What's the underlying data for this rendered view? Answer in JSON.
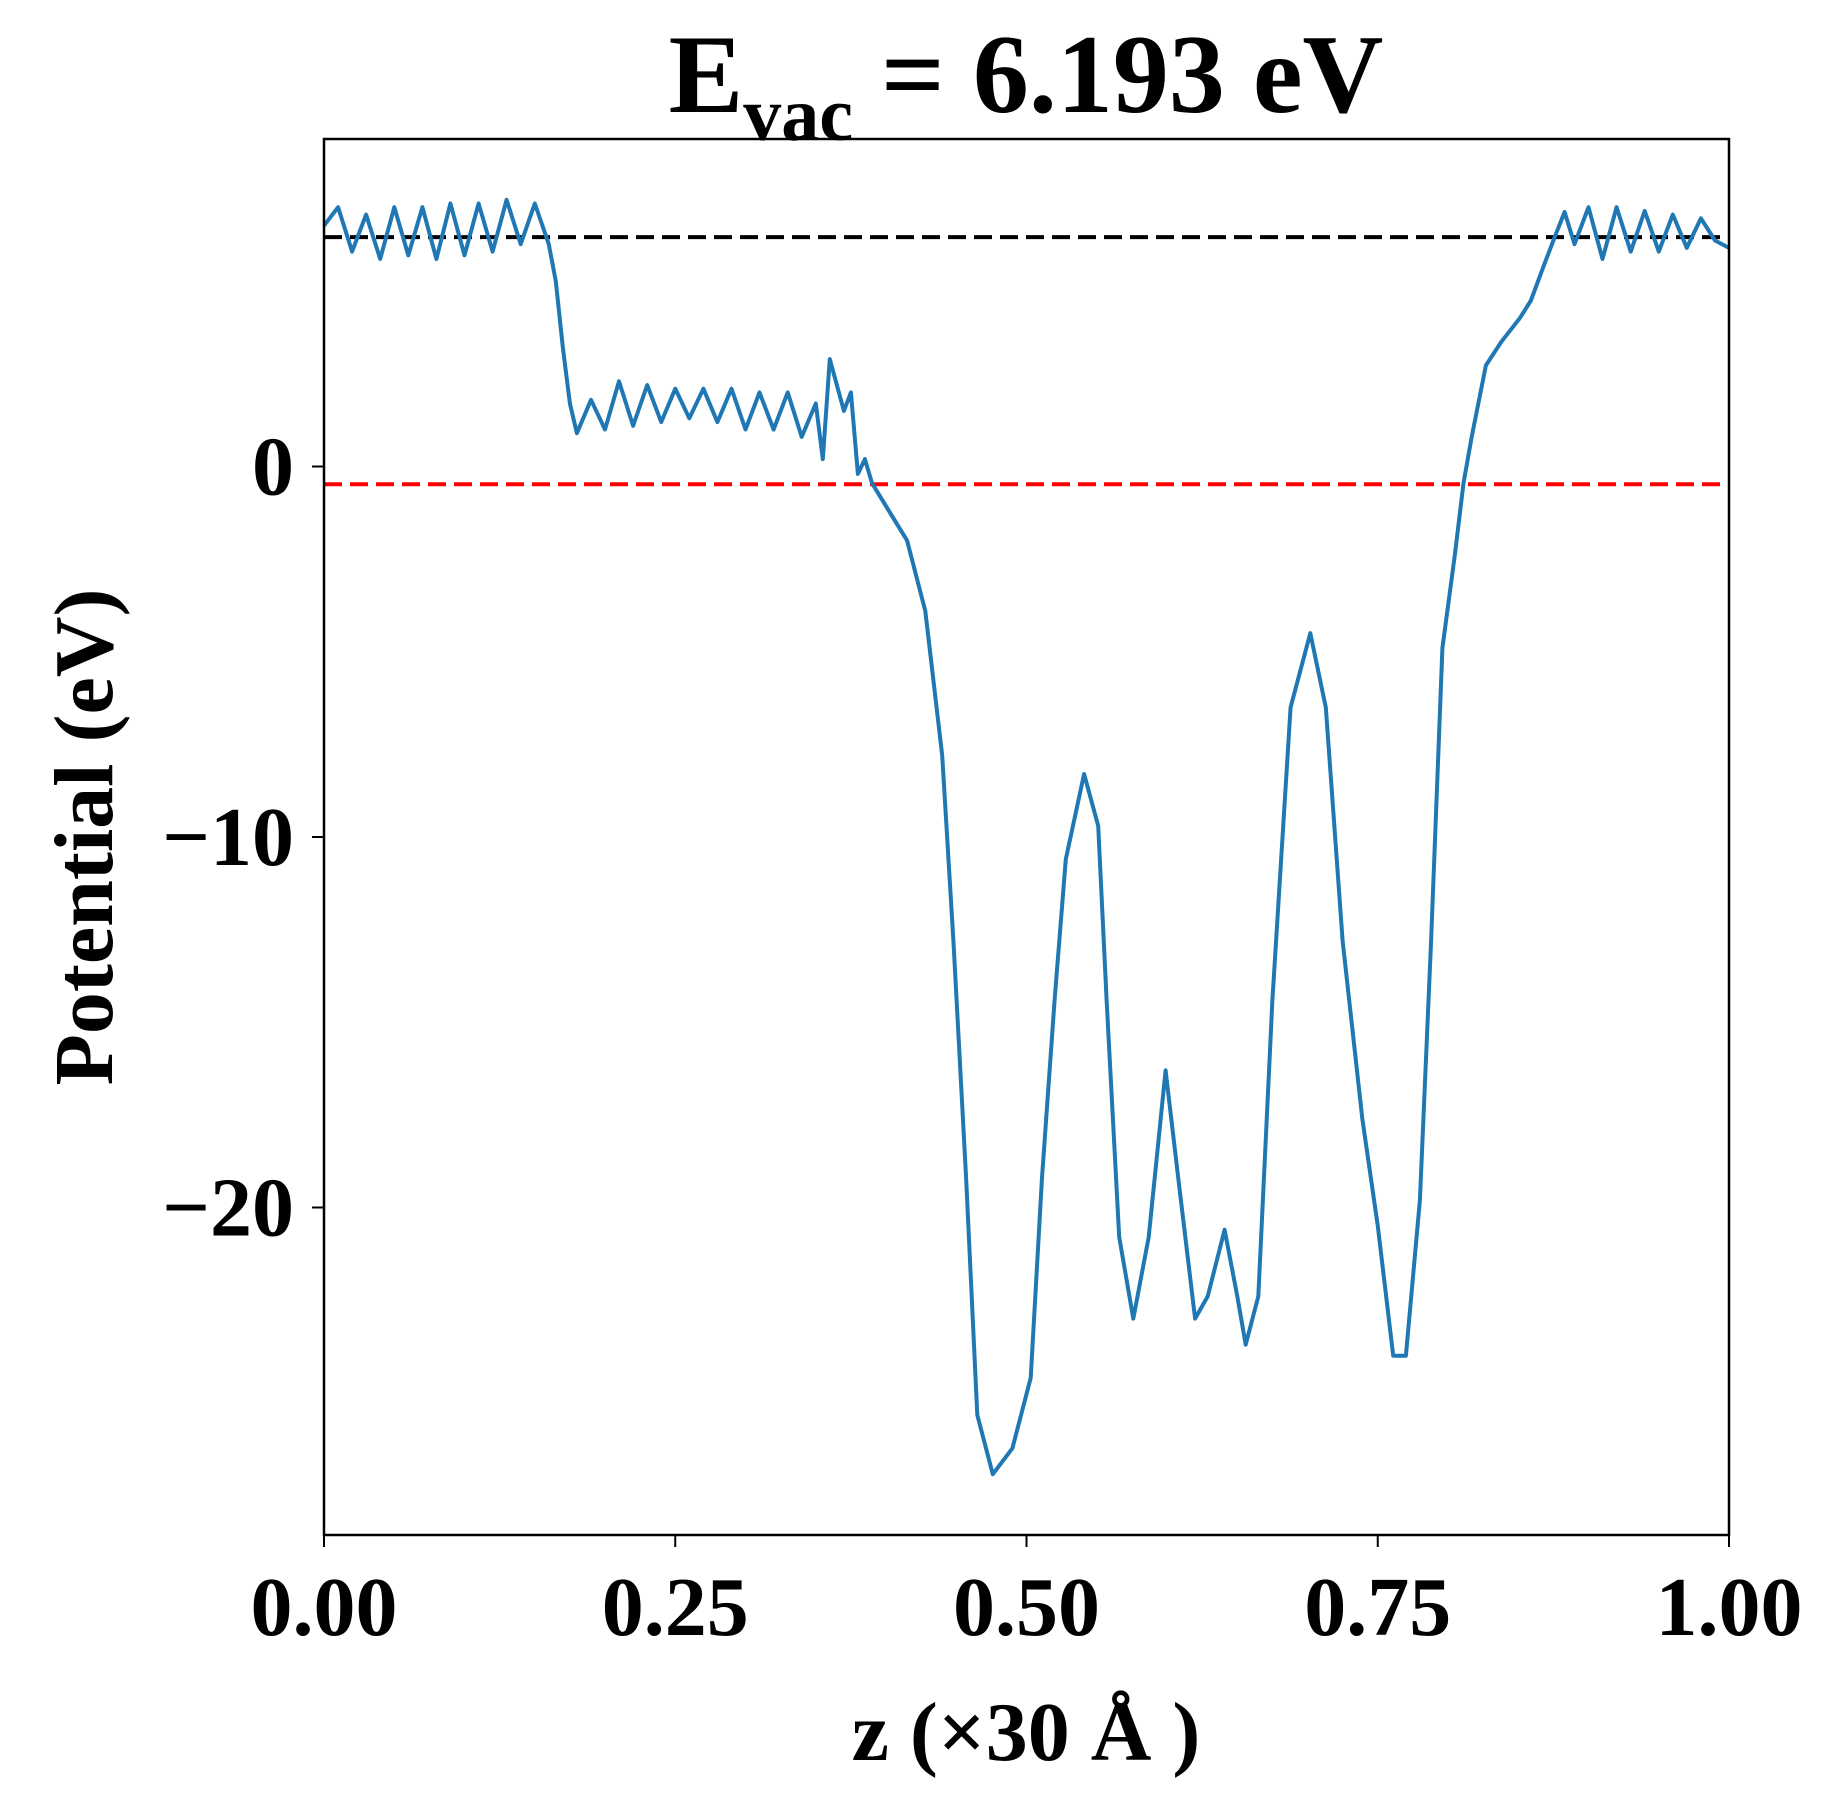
{
  "chart_data": {
    "type": "line",
    "title": {
      "main": "E",
      "sub": "vac",
      "rest": "= 6.193 eV"
    },
    "xlabel": "z (×30 Å )",
    "ylabel": "Potential (eV)",
    "xlim": [
      0,
      1
    ],
    "ylim": [
      -28.84,
      8.84
    ],
    "xticks": [
      {
        "value": 0,
        "label": "0.00"
      },
      {
        "value": 0.25,
        "label": "0.25"
      },
      {
        "value": 0.5,
        "label": "0.50"
      },
      {
        "value": 0.75,
        "label": "0.75"
      },
      {
        "value": 1,
        "label": "1.00"
      }
    ],
    "yticks": [
      {
        "value": -20,
        "label": "−20"
      },
      {
        "value": -10,
        "label": "−10"
      },
      0
    ],
    "hlines": [
      {
        "value": 6.193,
        "color": "#000000"
      },
      {
        "value": -0.48,
        "color": "#ff0000"
      }
    ],
    "series": [
      {
        "color": "#1f77b4",
        "x": [
          0,
          0.01,
          0.02,
          0.03,
          0.04,
          0.05,
          0.06,
          0.07,
          0.08,
          0.09,
          0.1,
          0.11,
          0.12,
          0.13,
          0.14,
          0.15,
          0.16,
          0.165,
          0.17,
          0.175,
          0.18,
          0.19,
          0.2,
          0.21,
          0.22,
          0.23,
          0.24,
          0.25,
          0.26,
          0.27,
          0.28,
          0.29,
          0.3,
          0.31,
          0.32,
          0.33,
          0.34,
          0.35,
          0.355,
          0.36,
          0.37,
          0.375,
          0.38,
          0.385,
          0.39,
          0.415,
          0.428,
          0.44,
          0.448,
          0.457,
          0.465,
          0.476,
          0.49,
          0.503,
          0.511,
          0.52,
          0.528,
          0.541,
          0.551,
          0.557,
          0.566,
          0.576,
          0.587,
          0.599,
          0.608,
          0.62,
          0.629,
          0.641,
          0.65,
          0.656,
          0.665,
          0.675,
          0.688,
          0.702,
          0.713,
          0.725,
          0.739,
          0.75,
          0.761,
          0.77,
          0.78,
          0.788,
          0.796,
          0.805,
          0.811,
          0.817,
          0.827,
          0.838,
          0.851,
          0.859,
          0.868,
          0.876,
          0.883,
          0.89,
          0.9,
          0.91,
          0.92,
          0.93,
          0.94,
          0.95,
          0.96,
          0.97,
          0.98,
          0.99,
          1.0
        ],
        "values": [
          6.5,
          7.0,
          5.8,
          6.8,
          5.6,
          7.0,
          5.7,
          7.0,
          5.6,
          7.1,
          5.7,
          7.1,
          5.8,
          7.2,
          6.0,
          7.1,
          6.0,
          5.0,
          3.2,
          1.7,
          0.9,
          1.8,
          1.0,
          2.3,
          1.1,
          2.2,
          1.2,
          2.1,
          1.3,
          2.1,
          1.2,
          2.1,
          1.0,
          2.0,
          1.0,
          2.0,
          0.8,
          1.7,
          0.2,
          2.9,
          1.5,
          2.0,
          -0.2,
          0.2,
          -0.45,
          -2.0,
          -3.9,
          -7.8,
          -12.8,
          -19.2,
          -25.6,
          -27.2,
          -26.5,
          -24.6,
          -19.2,
          -14.4,
          -10.6,
          -8.3,
          -9.7,
          -14.4,
          -20.8,
          -23.0,
          -20.8,
          -16.3,
          -19.2,
          -23.0,
          -22.4,
          -20.6,
          -22.4,
          -23.7,
          -22.4,
          -14.4,
          -6.5,
          -4.5,
          -6.5,
          -12.8,
          -17.6,
          -20.5,
          -24.0,
          -24.0,
          -19.8,
          -12.8,
          -4.9,
          -2.35,
          -0.45,
          0.83,
          2.73,
          3.37,
          4.0,
          4.48,
          5.4,
          6.2,
          6.87,
          6.0,
          7.0,
          5.6,
          7.0,
          5.8,
          6.9,
          5.8,
          6.8,
          5.9,
          6.7,
          6.1,
          5.9
        ]
      }
    ]
  }
}
